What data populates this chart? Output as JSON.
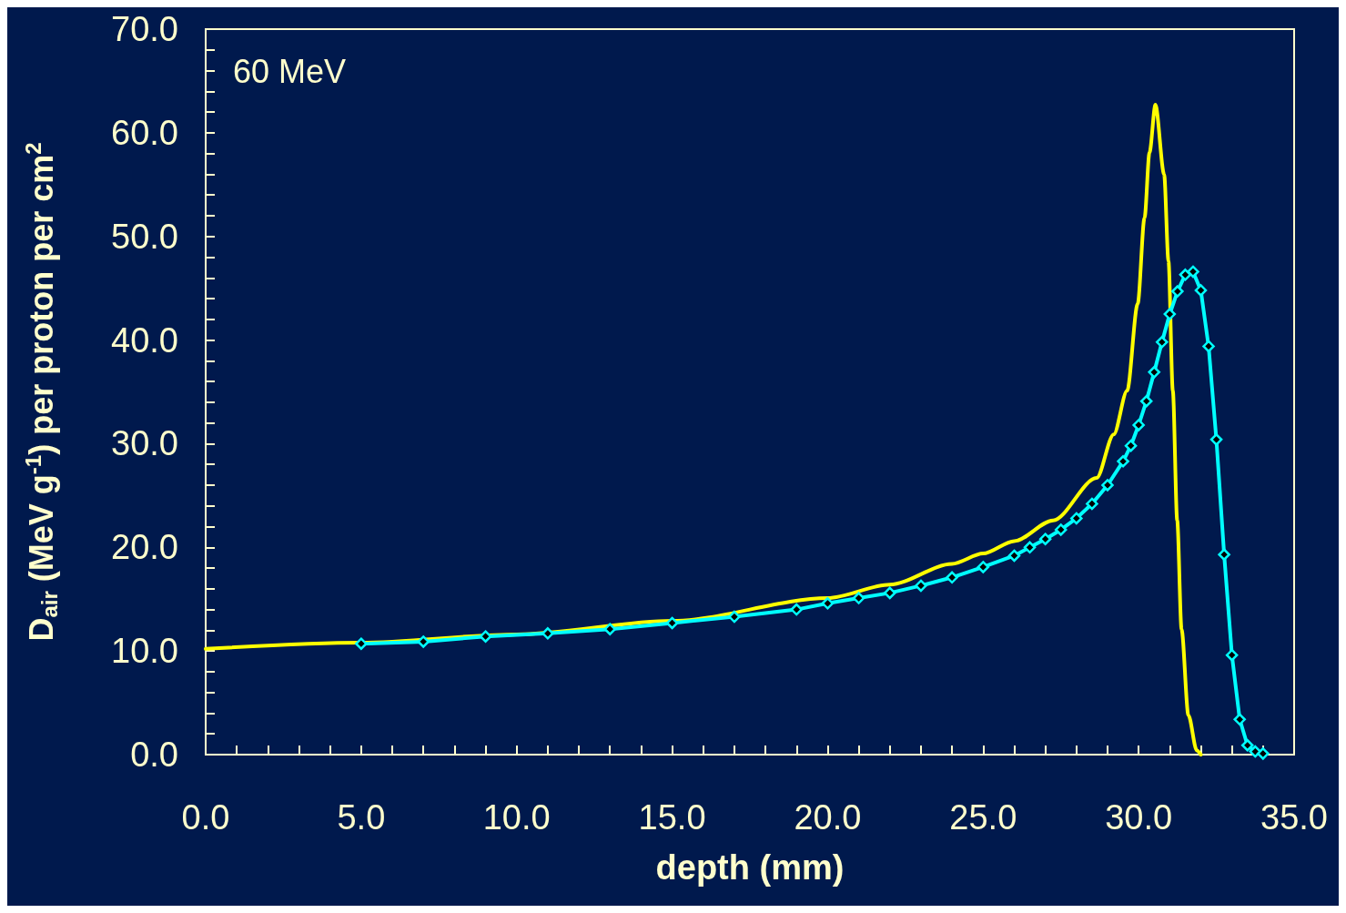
{
  "chart_data": {
    "type": "line",
    "xlabel": "depth (mm)",
    "ylabel": "D$_{air}$ (MeV g$^{-1}$) per proton per cm$^{2}$",
    "annotations": [
      "60 MeV"
    ],
    "xlim": [
      0,
      35
    ],
    "xticks": [
      {
        "value": 0,
        "label": "0.0"
      },
      {
        "value": 5,
        "label": "5.0"
      },
      {
        "value": 10,
        "label": "10.0"
      },
      {
        "value": 15,
        "label": "15.0"
      },
      {
        "value": 20,
        "label": "20.0"
      },
      {
        "value": 25,
        "label": "25.0"
      },
      {
        "value": 30,
        "label": "30.0"
      },
      {
        "value": 35,
        "label": "35.0"
      }
    ],
    "ylim": [
      0,
      70
    ],
    "yticks": [
      {
        "value": 0,
        "label": "0.0"
      },
      {
        "value": 10,
        "label": "10.0"
      },
      {
        "value": 20,
        "label": "20.0"
      },
      {
        "value": 30,
        "label": "30.0"
      },
      {
        "value": 40,
        "label": "40.0"
      },
      {
        "value": 50,
        "label": "50.0"
      },
      {
        "value": 60,
        "label": "60.0"
      },
      {
        "value": 70,
        "label": "70.0"
      }
    ],
    "grid": false,
    "series": [
      {
        "color": "#ffff00",
        "marker": "none",
        "x": [
          0,
          5,
          10,
          15,
          20,
          22,
          24,
          25,
          26,
          27.25,
          28.65,
          29.2,
          29.63,
          29.97,
          30.19,
          30.35,
          30.54,
          30.82,
          30.96,
          31.1,
          31.24,
          31.38,
          31.6,
          31.87,
          32
        ],
        "values": [
          10.2,
          10.8,
          11.6,
          12.9,
          15.1,
          16.4,
          18.4,
          19.4,
          20.6,
          22.6,
          26.7,
          30.9,
          35.1,
          43.5,
          51.8,
          58.1,
          62.7,
          56,
          47.6,
          35.1,
          22.6,
          12.1,
          3.8,
          0.4,
          0
        ]
      },
      {
        "color": "#00ffff",
        "marker": "diamond",
        "x": [
          5,
          7,
          9,
          11,
          13,
          15,
          17,
          19,
          20,
          21,
          22,
          23,
          24,
          25,
          26,
          26.5,
          27,
          27.5,
          28,
          28.5,
          29,
          29.5,
          29.75,
          30,
          30.25,
          30.5,
          30.75,
          31,
          31.25,
          31.5,
          31.75,
          32,
          32.25,
          32.5,
          32.75,
          33,
          33.25,
          33.5,
          33.75,
          34
        ],
        "values": [
          10.7,
          10.9,
          11.4,
          11.7,
          12.1,
          12.7,
          13.3,
          14,
          14.6,
          15.1,
          15.6,
          16.3,
          17.1,
          18.1,
          19.2,
          20,
          20.8,
          21.7,
          22.8,
          24.2,
          26,
          28.3,
          29.8,
          31.8,
          34.1,
          36.9,
          39.8,
          42.5,
          44.7,
          46.3,
          46.6,
          44.8,
          39.4,
          30.4,
          19.3,
          9.6,
          3.4,
          0.9,
          0.3,
          0.1
        ]
      }
    ]
  }
}
